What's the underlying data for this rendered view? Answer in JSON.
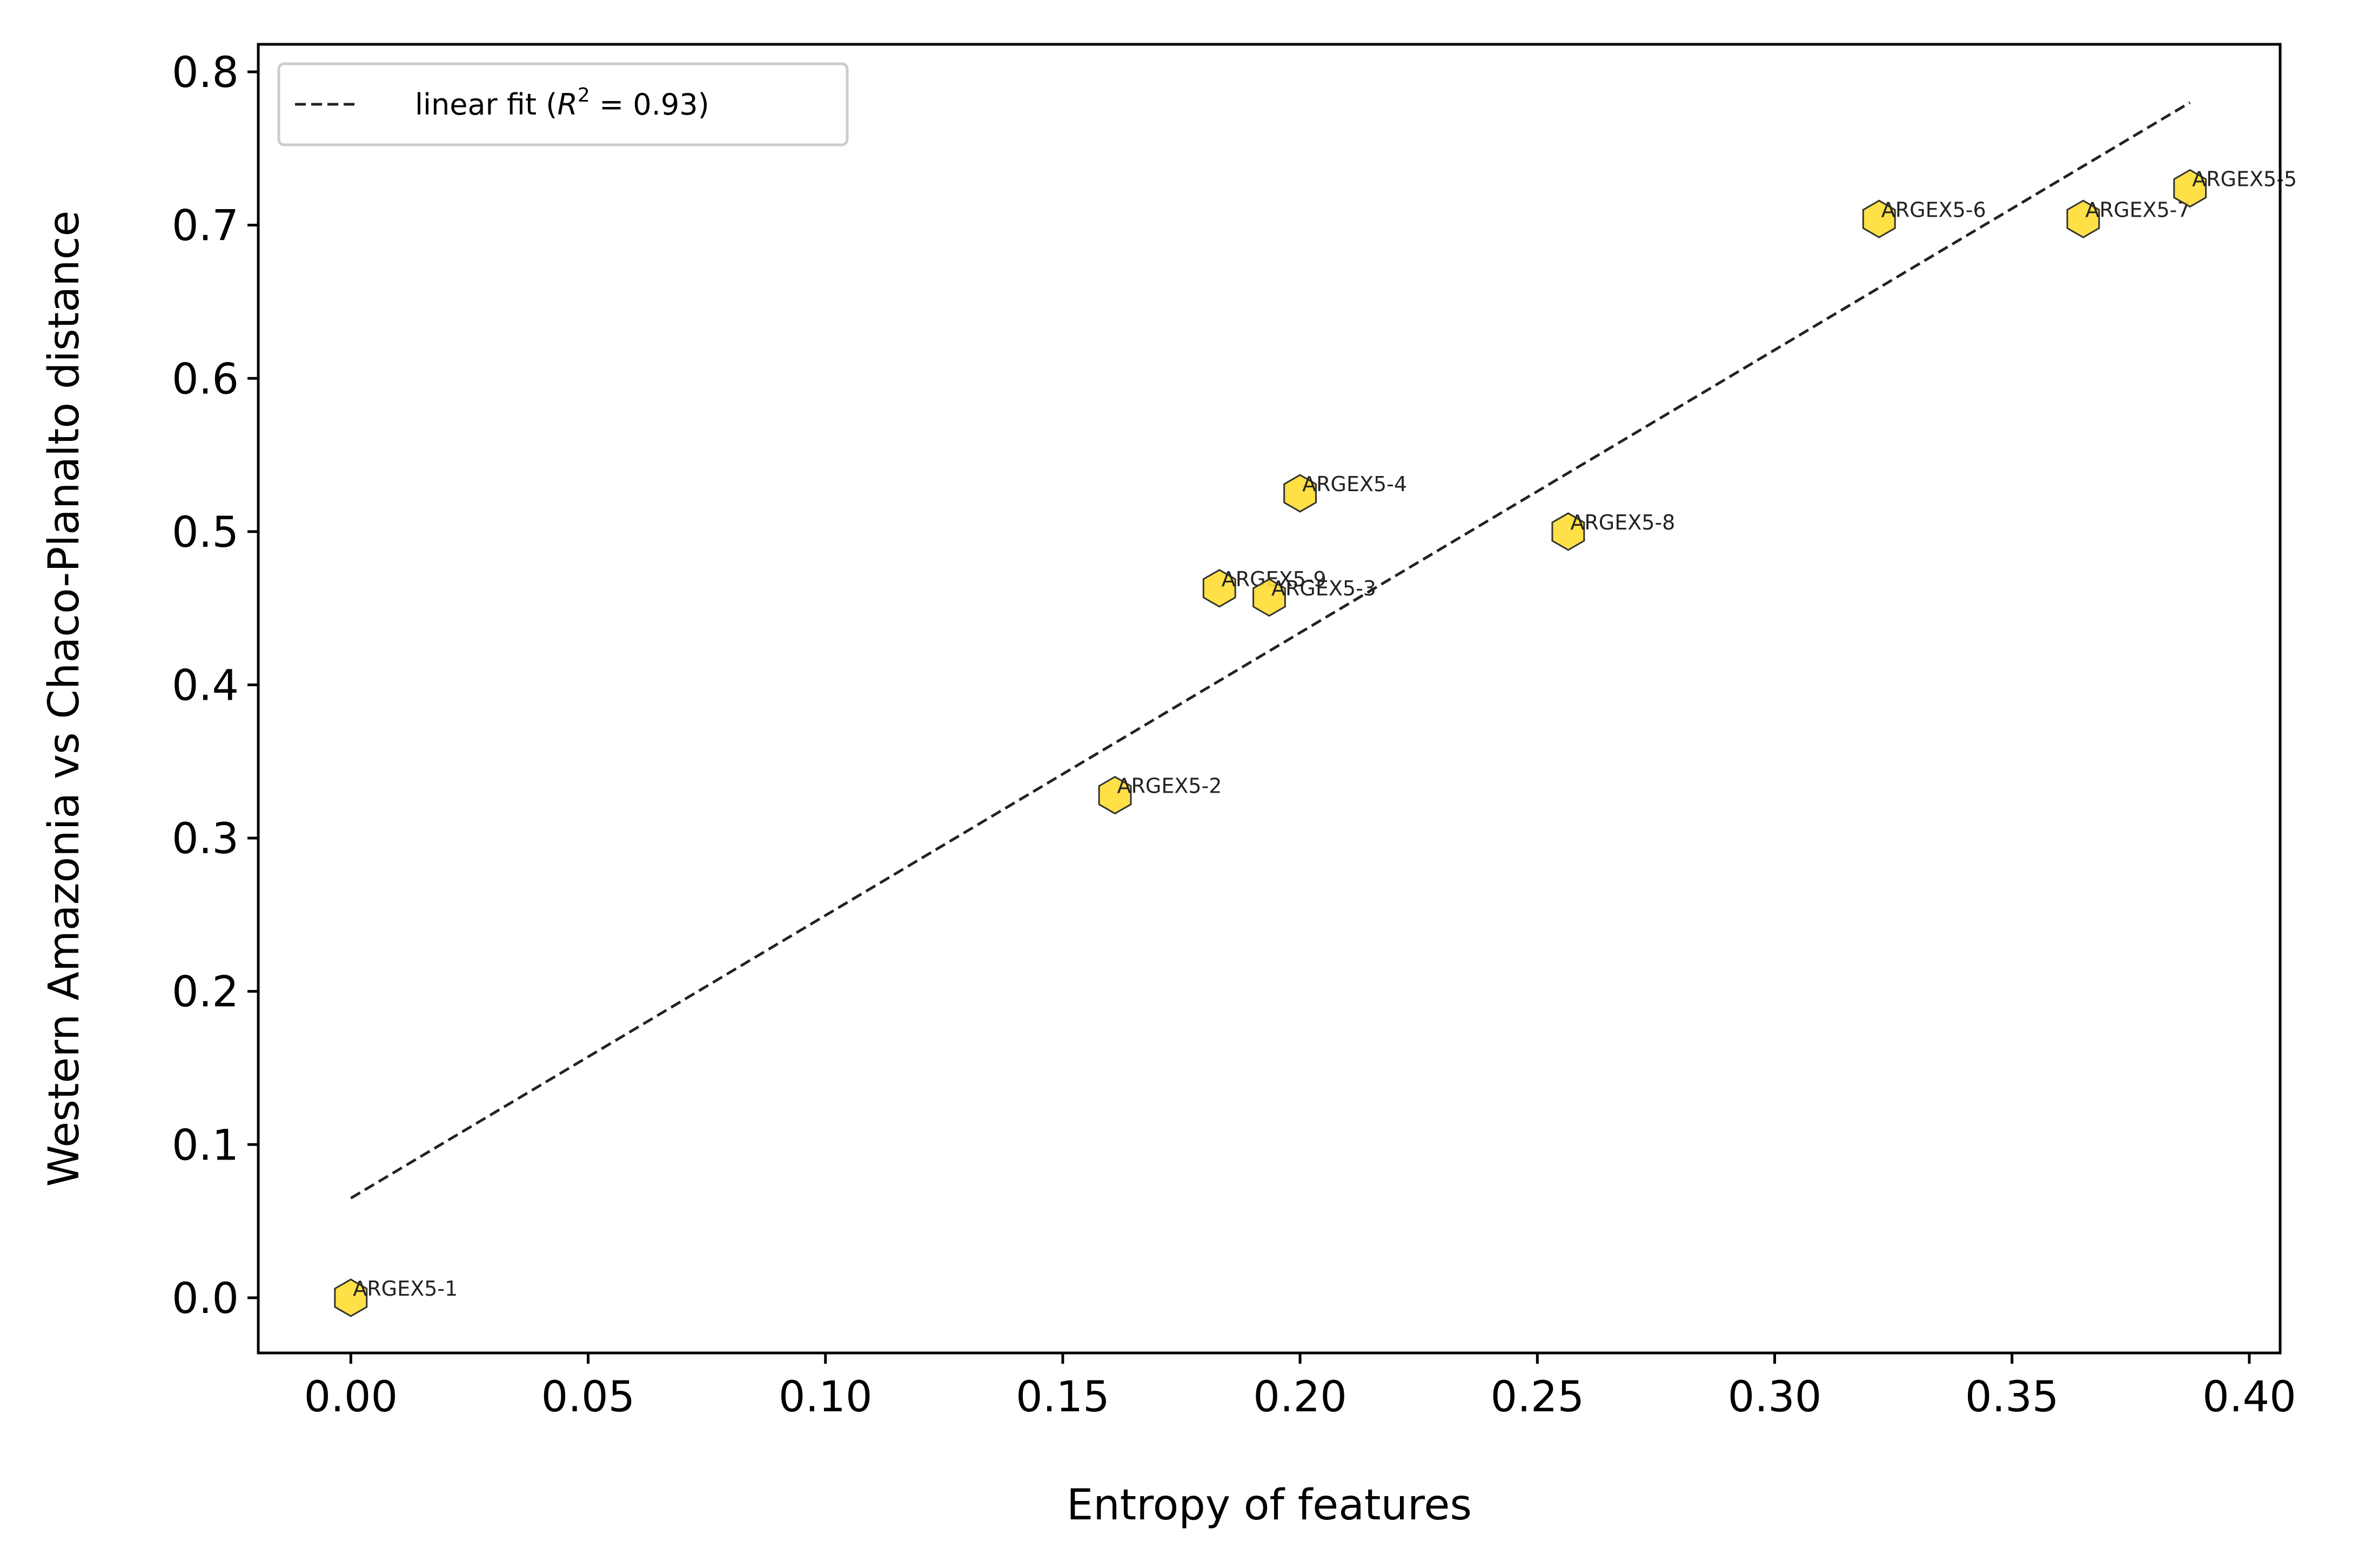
{
  "chart_data": {
    "type": "scatter",
    "title": "",
    "xlabel": "Entropy of features",
    "ylabel": "Western Amazonia vs Chaco-Planalto distance",
    "xlim": [
      -0.0195,
      0.4065
    ],
    "ylim": [
      -0.036,
      0.818
    ],
    "xticks": [
      0.0,
      0.05,
      0.1,
      0.15,
      0.2,
      0.25,
      0.3,
      0.35,
      0.4
    ],
    "xtick_labels": [
      "0.00",
      "0.05",
      "0.10",
      "0.15",
      "0.20",
      "0.25",
      "0.30",
      "0.35",
      "0.40"
    ],
    "yticks": [
      0.0,
      0.1,
      0.2,
      0.3,
      0.4,
      0.5,
      0.6,
      0.7,
      0.8
    ],
    "ytick_labels": [
      "0.0",
      "0.1",
      "0.2",
      "0.3",
      "0.4",
      "0.5",
      "0.6",
      "0.7",
      "0.8"
    ],
    "grid": false,
    "legend": {
      "placement": "top-left",
      "prefix": "linear fit (",
      "r2_symbol": "R",
      "r2_exponent": "2",
      "r2_value": " = 0.93)"
    },
    "marker": {
      "shape": "hexagon",
      "fill": "#FFDD33",
      "stroke": "#333333"
    },
    "line_color": "#222222",
    "points": [
      {
        "label": "ARGEX5-1",
        "x": 0.0,
        "y": 0.0
      },
      {
        "label": "ARGEX5-2",
        "x": 0.161,
        "y": 0.328
      },
      {
        "label": "ARGEX5-9",
        "x": 0.183,
        "y": 0.463
      },
      {
        "label": "ARGEX5-3",
        "x": 0.1935,
        "y": 0.457
      },
      {
        "label": "ARGEX5-4",
        "x": 0.2,
        "y": 0.525
      },
      {
        "label": "ARGEX5-8",
        "x": 0.2565,
        "y": 0.5
      },
      {
        "label": "ARGEX5-6",
        "x": 0.322,
        "y": 0.704
      },
      {
        "label": "ARGEX5-7",
        "x": 0.365,
        "y": 0.704
      },
      {
        "label": "ARGEX5-5",
        "x": 0.3875,
        "y": 0.724
      }
    ],
    "fit_line": {
      "x": [
        0.0,
        0.3875
      ],
      "y": [
        0.065,
        0.78
      ]
    }
  }
}
